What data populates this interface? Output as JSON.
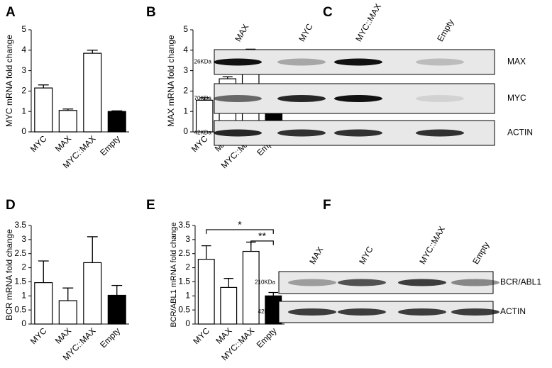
{
  "chart_data": [
    {
      "type": "bar",
      "panel": "A",
      "ylabel": "MYC mRNA fold change",
      "categories": [
        "MYC",
        "MAX",
        "MYC::MAX",
        "Empty"
      ],
      "values": [
        2.15,
        1.05,
        3.85,
        1.0
      ],
      "errors": [
        0.15,
        0.07,
        0.15,
        0.03
      ],
      "colors": [
        "#ffffff",
        "#ffffff",
        "#ffffff",
        "#000000"
      ],
      "ylim": [
        0,
        5
      ],
      "yticks": [
        0,
        1,
        2,
        3,
        4,
        5
      ]
    },
    {
      "type": "bar",
      "panel": "B",
      "ylabel": "MAX mRNA fold change",
      "categories": [
        "MYC",
        "MAX",
        "MYC::MAX",
        "Empty"
      ],
      "values": [
        1.55,
        2.6,
        3.97,
        1.0
      ],
      "errors": [
        0.12,
        0.1,
        0.08,
        0.08
      ],
      "colors": [
        "#ffffff",
        "#ffffff",
        "#ffffff",
        "#000000"
      ],
      "ylim": [
        0,
        5
      ],
      "yticks": [
        0,
        1,
        2,
        3,
        4,
        5
      ]
    },
    {
      "type": "bar",
      "panel": "D",
      "ylabel": "BCR mRNA fold change",
      "categories": [
        "MYC",
        "MAX",
        "MYC::MAX",
        "Empty"
      ],
      "values": [
        1.47,
        0.83,
        2.18,
        1.02
      ],
      "errors": [
        0.77,
        0.45,
        0.92,
        0.35
      ],
      "colors": [
        "#ffffff",
        "#ffffff",
        "#ffffff",
        "#000000"
      ],
      "ylim": [
        0,
        3.5
      ],
      "yticks": [
        0,
        0.5,
        1,
        1.5,
        2,
        2.5,
        3,
        3.5
      ]
    },
    {
      "type": "bar",
      "panel": "E",
      "ylabel": "BCR/ABL1 mRNA fold change",
      "categories": [
        "MYC",
        "MAX",
        "MYC::MAX",
        "Empty"
      ],
      "values": [
        2.3,
        1.3,
        2.58,
        1.0
      ],
      "errors": [
        0.48,
        0.32,
        0.33,
        0.12
      ],
      "colors": [
        "#ffffff",
        "#ffffff",
        "#ffffff",
        "#000000"
      ],
      "ylim": [
        0,
        3.5
      ],
      "yticks": [
        0,
        0.5,
        1,
        1.5,
        2,
        2.5,
        3,
        3.5
      ],
      "annotations": [
        {
          "text": "*",
          "from": 0,
          "to": 3
        },
        {
          "text": "**",
          "from": 2,
          "to": 3
        }
      ]
    }
  ],
  "blots": [
    {
      "panel": "C",
      "lanes": [
        "MAX",
        "MYC",
        "MYC::MAX",
        "Empty"
      ],
      "rows": [
        {
          "size": "26KDa",
          "protein": "MAX"
        },
        {
          "size": "70KDa",
          "protein": "MYC"
        },
        {
          "size": "42KDa",
          "protein": "ACTIN"
        }
      ]
    },
    {
      "panel": "F",
      "lanes": [
        "MAX",
        "MYC",
        "MYC::MAX",
        "Empty"
      ],
      "rows": [
        {
          "size": "210KDa",
          "protein": "BCR/ABL1"
        },
        {
          "size": "42KDa",
          "protein": "ACTIN"
        }
      ]
    }
  ]
}
